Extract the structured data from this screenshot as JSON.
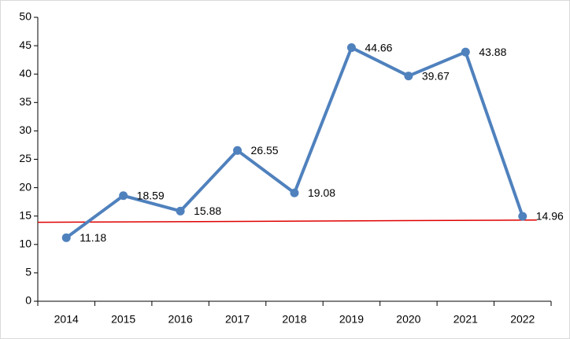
{
  "chart_data": {
    "type": "line",
    "categories": [
      "2014",
      "2015",
      "2016",
      "2017",
      "2018",
      "2019",
      "2020",
      "2021",
      "2022"
    ],
    "series": [
      {
        "color": "#4f81bd",
        "values": [
          11.18,
          18.59,
          15.88,
          26.55,
          19.08,
          44.66,
          39.67,
          43.88,
          14.96
        ]
      }
    ],
    "ylim": [
      0,
      50
    ],
    "yticks": [
      0,
      5,
      10,
      15,
      20,
      25,
      30,
      35,
      40,
      45,
      50
    ],
    "reference_line": {
      "color": "#e00000",
      "values": [
        13.9,
        14.3
      ]
    }
  }
}
